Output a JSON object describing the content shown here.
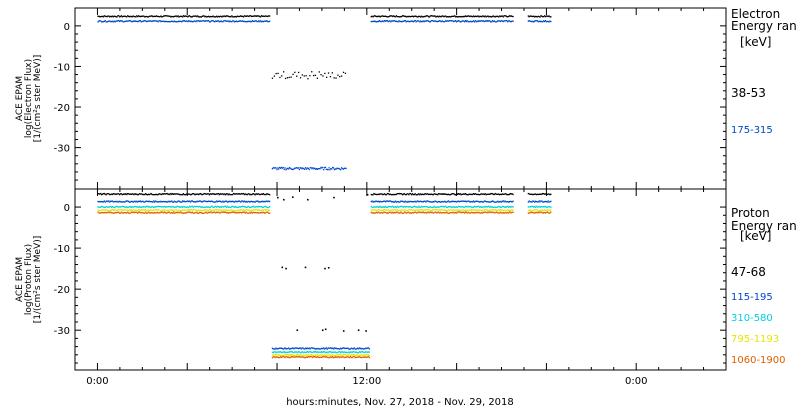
{
  "chart_data": [
    {
      "type": "scatter",
      "panel": "electron",
      "ylabel_lines": [
        "ACE EPAM",
        "log(Electron Flux)",
        "[1/(cm²s ster MeV)]"
      ],
      "ylim": [
        -40,
        5
      ],
      "yticks": [
        0,
        -10,
        -20,
        -30
      ],
      "ytick_labels": [
        "0",
        "-10",
        "-20",
        "-30"
      ],
      "legend_title": [
        "Electron",
        "Energy ran",
        "[keV]"
      ],
      "series": [
        {
          "name": "38-53",
          "color": "#000000",
          "segments": [
            {
              "t": [
                0,
                23
              ],
              "y": 2.5,
              "jitter": 0.15
            },
            {
              "t": [
                23.3,
                33.2
              ],
              "y": -12,
              "jitter": 0.9,
              "sparse": true
            },
            {
              "t": [
                36.5,
                55.5
              ],
              "y": 2.5,
              "jitter": 0.15
            },
            {
              "t": [
                57.5,
                60.5
              ],
              "y": 2.5,
              "jitter": 0.15
            }
          ]
        },
        {
          "name": "175-315",
          "color": "#0047c8",
          "segments": [
            {
              "t": [
                0,
                23
              ],
              "y": 1.3,
              "jitter": 0.15
            },
            {
              "t": [
                23.3,
                33.2
              ],
              "y": -35,
              "jitter": 0.3
            },
            {
              "t": [
                36.5,
                55.5
              ],
              "y": 1.3,
              "jitter": 0.15
            },
            {
              "t": [
                57.5,
                60.5
              ],
              "y": 1.3,
              "jitter": 0.15
            }
          ]
        }
      ]
    },
    {
      "type": "scatter",
      "panel": "proton",
      "ylabel_lines": [
        "ACE EPAM",
        "log(Proton Flux)",
        "[1/(cm²s ster MeV)]"
      ],
      "ylim": [
        -38,
        5
      ],
      "yticks": [
        0,
        -10,
        -20,
        -30
      ],
      "ytick_labels": [
        "0",
        "-10",
        "-20",
        "-30"
      ],
      "legend_title": [
        "Proton",
        "Energy ran",
        "[keV]"
      ],
      "series": [
        {
          "name": "47-68",
          "color": "#000000",
          "segments": [
            {
              "t": [
                0,
                23
              ],
              "y": 3.3,
              "jitter": 0.15
            },
            {
              "t": [
                36.5,
                55.5
              ],
              "y": 3.3,
              "jitter": 0.15
            },
            {
              "t": [
                57.5,
                60.5
              ],
              "y": 3.3,
              "jitter": 0.15
            }
          ],
          "scatter_points": [
            {
              "t": 24.0,
              "y": 2.5
            },
            {
              "t": 24.8,
              "y": 2.0
            },
            {
              "t": 26.0,
              "y": 2.6
            },
            {
              "t": 28.0,
              "y": 2.0
            },
            {
              "t": 31.5,
              "y": 2.5
            },
            {
              "t": 36.0,
              "y": 3.2
            },
            {
              "t": 24.6,
              "y": -14.5
            },
            {
              "t": 25.1,
              "y": -14.8
            },
            {
              "t": 27.7,
              "y": -14.5
            },
            {
              "t": 30.3,
              "y": -14.8
            },
            {
              "t": 30.8,
              "y": -14.6
            },
            {
              "t": 26.6,
              "y": -29.8
            },
            {
              "t": 30.0,
              "y": -29.8
            },
            {
              "t": 30.4,
              "y": -29.6
            },
            {
              "t": 32.8,
              "y": -30.0
            },
            {
              "t": 34.8,
              "y": -29.8
            },
            {
              "t": 35.8,
              "y": -30.0
            }
          ]
        },
        {
          "name": "115-195",
          "color": "#0047c8",
          "segments": [
            {
              "t": [
                0,
                23
              ],
              "y": 1.5,
              "jitter": 0.15
            },
            {
              "t": [
                23.3,
                36.3
              ],
              "y": -34.3,
              "jitter": 0.15
            },
            {
              "t": [
                36.5,
                55.5
              ],
              "y": 1.5,
              "jitter": 0.15
            },
            {
              "t": [
                57.5,
                60.5
              ],
              "y": 1.5,
              "jitter": 0.15
            }
          ]
        },
        {
          "name": "310-580",
          "color": "#00d0e0",
          "segments": [
            {
              "t": [
                0,
                23
              ],
              "y": 0.2,
              "jitter": 0.15
            },
            {
              "t": [
                23.3,
                36.3
              ],
              "y": -35.2,
              "jitter": 0.15
            },
            {
              "t": [
                36.5,
                55.5
              ],
              "y": 0.2,
              "jitter": 0.15
            },
            {
              "t": [
                57.5,
                60.5
              ],
              "y": 0.2,
              "jitter": 0.15
            }
          ]
        },
        {
          "name": "795-1193",
          "color": "#e6e600",
          "segments": [
            {
              "t": [
                0,
                23
              ],
              "y": -0.6,
              "jitter": 0.15
            },
            {
              "t": [
                23.3,
                36.3
              ],
              "y": -35.9,
              "jitter": 0.15
            },
            {
              "t": [
                36.5,
                55.5
              ],
              "y": -0.6,
              "jitter": 0.15
            },
            {
              "t": [
                57.5,
                60.5
              ],
              "y": -0.6,
              "jitter": 0.15
            }
          ]
        },
        {
          "name": "1060-1900",
          "color": "#e06000",
          "segments": [
            {
              "t": [
                0,
                23
              ],
              "y": -1.2,
              "jitter": 0.15
            },
            {
              "t": [
                23.3,
                36.3
              ],
              "y": -36.4,
              "jitter": 0.15
            },
            {
              "t": [
                36.5,
                55.5
              ],
              "y": -1.2,
              "jitter": 0.15
            },
            {
              "t": [
                57.5,
                60.5
              ],
              "y": -1.2,
              "jitter": 0.15
            }
          ]
        }
      ]
    }
  ],
  "x_axis": {
    "tick_hours": [
      0,
      12,
      24,
      36,
      48,
      60,
      72
    ],
    "tick_labels": {
      "0": "0:00",
      "36": "12:00",
      "72": "0:00"
    },
    "xlim": [
      -3,
      84
    ],
    "label": "hours:minutes, Nov. 27, 2018 - Nov. 29, 2018"
  }
}
